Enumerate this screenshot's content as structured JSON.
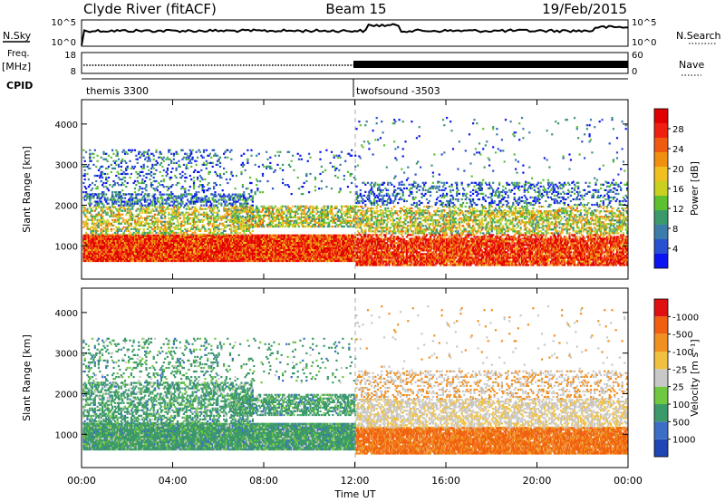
{
  "header": {
    "station": "Clyde River (fitACF)",
    "beam": "Beam 15",
    "date": "19/Feb/2015"
  },
  "noise_panel": {
    "left_label": "N.Sky",
    "right_label": "N.Search",
    "left_ticks": [
      "10^5",
      "10^0"
    ],
    "right_ticks": [
      "10^5",
      "10^0"
    ]
  },
  "freq_panel": {
    "left_label_line1": "Freq.",
    "left_label_line2": "[MHz]",
    "right_label": "Nave",
    "left_ticks": [
      "18",
      "8"
    ],
    "right_ticks": [
      "60",
      "0"
    ]
  },
  "cpid_panel": {
    "label": "CPID",
    "segments": [
      {
        "name": "themis 3300",
        "start_hour": 0,
        "end_hour": 12
      },
      {
        "name": "twofsound -3503",
        "start_hour": 12,
        "end_hour": 24
      }
    ]
  },
  "chart_data": [
    {
      "type": "heatmap",
      "name": "Power",
      "ylabel": "Slant Range [km]",
      "yticks": [
        1000,
        2000,
        3000,
        4000
      ],
      "ylim": [
        180,
        4600
      ],
      "xlim": [
        0,
        24
      ],
      "colorbar": {
        "label": "Power [dB]",
        "tick_labels": [
          "4",
          "8",
          "12",
          "16",
          "20",
          "24",
          "28"
        ],
        "colors": [
          "#0a14f0",
          "#2850d0",
          "#3c7ca8",
          "#3c9a6a",
          "#5cc030",
          "#c8d020",
          "#f0c020",
          "#f09010",
          "#f05a10",
          "#f02010",
          "#e00000"
        ]
      }
    },
    {
      "type": "heatmap",
      "name": "Velocity",
      "ylabel": "Slant Range [km]",
      "yticks": [
        1000,
        2000,
        3000,
        4000
      ],
      "ylim": [
        180,
        4600
      ],
      "xlim": [
        0,
        24
      ],
      "colorbar": {
        "label": "Velocity [m s⁻¹]",
        "tick_labels": [
          "1000",
          "500",
          "100",
          "25",
          "-25",
          "-100",
          "-500",
          "-1000"
        ],
        "colors": [
          "#1e46b4",
          "#3c6ec8",
          "#3c9a6a",
          "#70c840",
          "#c8c8c8",
          "#f0c040",
          "#f09020",
          "#f06010",
          "#e01010"
        ]
      }
    }
  ],
  "xaxis": {
    "tick_labels": [
      "00:00",
      "04:00",
      "08:00",
      "12:00",
      "16:00",
      "20:00",
      "00:00"
    ],
    "label": "Time UT"
  }
}
